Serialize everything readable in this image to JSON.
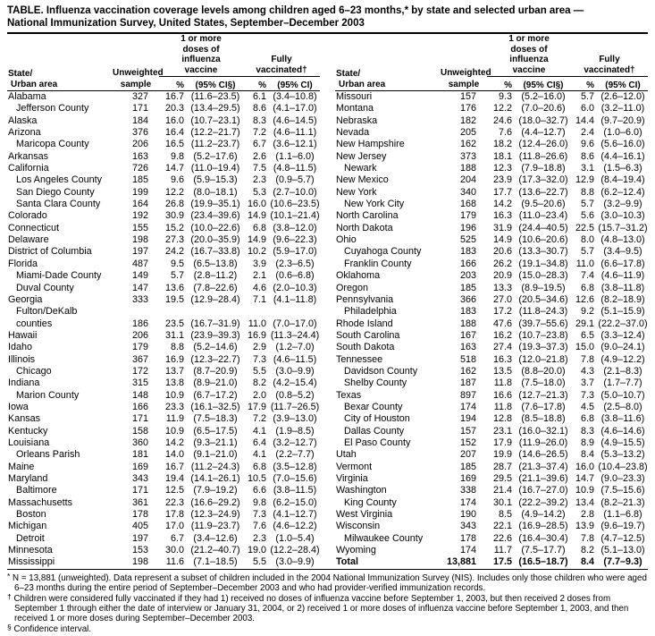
{
  "title": {
    "line1": "TABLE. Influenza vaccination coverage levels among children aged 6–23 months,* by state and selected urban area —",
    "line2": "National Immunization Survey, United States, September–December 2003"
  },
  "header": {
    "state_line1": "State/",
    "state_line2": "Urban area",
    "sample_line1": "Unweighted",
    "sample_line2": "sample",
    "group_dose1": "1 or more\ndoses of\ninfluenza\nvaccine",
    "group_fully": "Fully\nvaccinated†",
    "pct": "%",
    "ci_dose1": "(95% CI§)",
    "ci_fully": "(95% CI)"
  },
  "row_fields": [
    "name",
    "indent",
    "unweighted_sample",
    "dose1_pct",
    "dose1_ci",
    "fully_pct",
    "fully_ci",
    "bold"
  ],
  "left_rows": [
    [
      "Alabama",
      0,
      "327",
      "16.7",
      "(11.6–23.5)",
      "6.1",
      "(3.4–10.8)"
    ],
    [
      "Jefferson County",
      1,
      "171",
      "20.3",
      "(13.4–29.5)",
      "8.6",
      "(4.1–17.0)"
    ],
    [
      "Alaska",
      0,
      "184",
      "16.0",
      "(10.7–23.1)",
      "8.3",
      "(4.6–14.5)"
    ],
    [
      "Arizona",
      0,
      "376",
      "16.4",
      "(12.2–21.7)",
      "7.2",
      "(4.6–11.1)"
    ],
    [
      "Maricopa County",
      1,
      "206",
      "16.5",
      "(11.2–23.7)",
      "6.7",
      "(3.6–12.1)"
    ],
    [
      "Arkansas",
      0,
      "163",
      "9.8",
      "(5.2–17.6)",
      "2.6",
      "(1.1–6.0)"
    ],
    [
      "California",
      0,
      "726",
      "14.7",
      "(11.0–19.4)",
      "7.5",
      "(4.8–11.5)"
    ],
    [
      "Los Angeles County",
      1,
      "185",
      "9.6",
      "(5.9–15.3)",
      "2.3",
      "(0.9–5.7)"
    ],
    [
      "San Diego County",
      1,
      "199",
      "12.2",
      "(8.0–18.1)",
      "5.3",
      "(2.7–10.0)"
    ],
    [
      "Santa Clara County",
      1,
      "164",
      "26.8",
      "(19.9–35.1)",
      "16.0",
      "(10.6–23.5)"
    ],
    [
      "Colorado",
      0,
      "192",
      "30.9",
      "(23.4–39.6)",
      "14.9",
      "(10.1–21.4)"
    ],
    [
      "Connecticut",
      0,
      "155",
      "15.2",
      "(10.0–22.6)",
      "6.8",
      "(3.8–12.0)"
    ],
    [
      "Delaware",
      0,
      "198",
      "27.3",
      "(20.0–35.9)",
      "14.9",
      "(9.6–22.3)"
    ],
    [
      "District of Columbia",
      0,
      "197",
      "24.2",
      "(16.7–33.8)",
      "10.2",
      "(5.9–17.0)"
    ],
    [
      "Florida",
      0,
      "487",
      "9.5",
      "(6.5–13.8)",
      "3.9",
      "(2.3–6.5)"
    ],
    [
      "Miami-Dade County",
      1,
      "149",
      "5.7",
      "(2.8–11.2)",
      "2.1",
      "(0.6–6.8)"
    ],
    [
      "Duval County",
      1,
      "147",
      "13.6",
      "(7.8–22.6)",
      "4.6",
      "(2.0–10.3)"
    ],
    [
      "Georgia",
      0,
      "333",
      "19.5",
      "(12.9–28.4)",
      "7.1",
      "(4.1–11.8)"
    ],
    [
      "Fulton/DeKalb",
      1,
      "",
      "",
      "",
      "",
      ""
    ],
    [
      "counties",
      1,
      "186",
      "23.5",
      "(16.7–31.9)",
      "11.0",
      "(7.0–17.0)"
    ],
    [
      "Hawaii",
      0,
      "206",
      "31.1",
      "(23.9–39.3)",
      "16.9",
      "(11.3–24.4)"
    ],
    [
      "Idaho",
      0,
      "179",
      "8.8",
      "(5.2–14.6)",
      "2.9",
      "(1.2–7.0)"
    ],
    [
      "Illinois",
      0,
      "367",
      "16.9",
      "(12.3–22.7)",
      "7.3",
      "(4.6–11.5)"
    ],
    [
      "Chicago",
      1,
      "172",
      "13.7",
      "(8.7–20.9)",
      "5.5",
      "(3.0–9.9)"
    ],
    [
      "Indiana",
      0,
      "315",
      "13.8",
      "(8.9–21.0)",
      "8.2",
      "(4.2–15.4)"
    ],
    [
      "Marion County",
      1,
      "148",
      "10.9",
      "(6.7–17.2)",
      "2.0",
      "(0.8–5.2)"
    ],
    [
      "Iowa",
      0,
      "166",
      "23.3",
      "(16.1–32.5)",
      "17.9",
      "(11.7–26.5)"
    ],
    [
      "Kansas",
      0,
      "171",
      "11.9",
      "(7.5–18.3)",
      "7.2",
      "(3.9–13.0)"
    ],
    [
      "Kentucky",
      0,
      "158",
      "10.9",
      "(6.5–17.5)",
      "4.1",
      "(1.9–8.5)"
    ],
    [
      "Louisiana",
      0,
      "360",
      "14.2",
      "(9.3–21.1)",
      "6.4",
      "(3.2–12.7)"
    ],
    [
      "Orleans Parish",
      1,
      "181",
      "14.0",
      "(9.1–21.0)",
      "4.1",
      "(2.2–7.7)"
    ],
    [
      "Maine",
      0,
      "169",
      "16.7",
      "(11.2–24.3)",
      "6.8",
      "(3.5–12.8)"
    ],
    [
      "Maryland",
      0,
      "343",
      "19.4",
      "(14.1–26.1)",
      "10.5",
      "(7.0–15.6)"
    ],
    [
      "Baltimore",
      1,
      "171",
      "12.5",
      "(7.9–19.2)",
      "6.6",
      "(3.8–11.5)"
    ],
    [
      "Massachusetts",
      0,
      "361",
      "22.3",
      "(16.6–29.2)",
      "9.8",
      "(6.2–15.0)"
    ],
    [
      "Boston",
      1,
      "178",
      "17.8",
      "(12.3–24.9)",
      "7.3",
      "(4.1–12.7)"
    ],
    [
      "Michigan",
      0,
      "405",
      "17.0",
      "(11.9–23.7)",
      "7.6",
      "(4.6–12.2)"
    ],
    [
      "Detroit",
      1,
      "197",
      "6.7",
      "(3.4–12.6)",
      "2.3",
      "(1.0–5.4)"
    ],
    [
      "Minnesota",
      0,
      "153",
      "30.0",
      "(21.2–40.7)",
      "19.0",
      "(12.2–28.4)"
    ],
    [
      "Mississippi",
      0,
      "198",
      "11.6",
      "(7.1–18.5)",
      "5.5",
      "(3.0–9.9)"
    ]
  ],
  "right_rows": [
    [
      "Missouri",
      0,
      "157",
      "9.3",
      "(5.2–16.0)",
      "5.7",
      "(2.6–12.0)"
    ],
    [
      "Montana",
      0,
      "176",
      "12.2",
      "(7.0–20.6)",
      "6.0",
      "(3.2–11.0)"
    ],
    [
      "Nebraska",
      0,
      "182",
      "24.6",
      "(18.0–32.7)",
      "14.4",
      "(9.7–20.9)"
    ],
    [
      "Nevada",
      0,
      "205",
      "7.6",
      "(4.4–12.7)",
      "2.4",
      "(1.0–6.0)"
    ],
    [
      "New Hampshire",
      0,
      "162",
      "18.2",
      "(12.4–26.0)",
      "9.6",
      "(5.6–16.0)"
    ],
    [
      "New Jersey",
      0,
      "373",
      "18.1",
      "(11.8–26.6)",
      "8.6",
      "(4.4–16.1)"
    ],
    [
      "Newark",
      1,
      "188",
      "12.3",
      "(7.9–18.8)",
      "3.1",
      "(1.5–6.3)"
    ],
    [
      "New Mexico",
      0,
      "204",
      "23.9",
      "(17.3–32.0)",
      "12.9",
      "(8.4–19.4)"
    ],
    [
      "New York",
      0,
      "340",
      "17.7",
      "(13.6–22.7)",
      "8.8",
      "(6.2–12.4)"
    ],
    [
      "New York City",
      1,
      "168",
      "14.2",
      "(9.5–20.6)",
      "5.7",
      "(3.2–9.9)"
    ],
    [
      "North Carolina",
      0,
      "179",
      "16.3",
      "(11.0–23.4)",
      "5.6",
      "(3.0–10.3)"
    ],
    [
      "North Dakota",
      0,
      "196",
      "31.9",
      "(24.4–40.5)",
      "22.5",
      "(15.7–31.2)"
    ],
    [
      "Ohio",
      0,
      "525",
      "14.9",
      "(10.6–20.6)",
      "8.0",
      "(4.8–13.0)"
    ],
    [
      "Cuyahoga County",
      1,
      "183",
      "20.6",
      "(13.3–30.7)",
      "5.7",
      "(3.4–9.5)"
    ],
    [
      "Franklin County",
      1,
      "166",
      "26.2",
      "(19.1–34.8)",
      "11.0",
      "(6.6–17.8)"
    ],
    [
      "Oklahoma",
      0,
      "203",
      "20.9",
      "(15.0–28.3)",
      "7.4",
      "(4.6–11.9)"
    ],
    [
      "Oregon",
      0,
      "185",
      "13.3",
      "(8.9–19.5)",
      "6.8",
      "(3.8–11.8)"
    ],
    [
      "Pennsylvania",
      0,
      "366",
      "27.0",
      "(20.5–34.6)",
      "12.6",
      "(8.2–18.9)"
    ],
    [
      "Philadelphia",
      1,
      "183",
      "17.2",
      "(11.8–24.3)",
      "9.2",
      "(5.1–15.9)"
    ],
    [
      "Rhode Island",
      0,
      "188",
      "47.6",
      "(39.7–55.6)",
      "29.1",
      "(22.2–37.0)"
    ],
    [
      "South Carolina",
      0,
      "167",
      "16.2",
      "(10.7–23.8)",
      "6.5",
      "(3.3–12.4)"
    ],
    [
      "South Dakota",
      0,
      "163",
      "27.4",
      "(19.3–37.3)",
      "15.0",
      "(9.0–24.1)"
    ],
    [
      "Tennessee",
      0,
      "518",
      "16.3",
      "(12.0–21.8)",
      "7.8",
      "(4.9–12.2)"
    ],
    [
      "Davidson County",
      1,
      "162",
      "13.5",
      "(8.8–20.0)",
      "4.3",
      "(2.1–8.3)"
    ],
    [
      "Shelby County",
      1,
      "187",
      "11.8",
      "(7.5–18.0)",
      "3.7",
      "(1.7–7.7)"
    ],
    [
      "Texas",
      0,
      "897",
      "16.6",
      "(12.7–21.3)",
      "7.3",
      "(5.0–10.7)"
    ],
    [
      "Bexar County",
      1,
      "174",
      "11.8",
      "(7.6–17.8)",
      "4.5",
      "(2.5–8.0)"
    ],
    [
      "City of Houston",
      1,
      "194",
      "12.8",
      "(8.5–18.8)",
      "6.8",
      "(3.8–11.6)"
    ],
    [
      "Dallas County",
      1,
      "157",
      "23.1",
      "(16.0–32.1)",
      "8.3",
      "(4.6–14.6)"
    ],
    [
      "El Paso County",
      1,
      "152",
      "17.9",
      "(11.9–26.0)",
      "8.9",
      "(4.9–15.5)"
    ],
    [
      "Utah",
      0,
      "207",
      "19.9",
      "(14.6–26.5)",
      "8.4",
      "(5.3–13.2)"
    ],
    [
      "Vermont",
      0,
      "185",
      "28.7",
      "(21.3–37.4)",
      "16.0",
      "(10.4–23.8)"
    ],
    [
      "Virginia",
      0,
      "169",
      "29.5",
      "(21.1–39.6)",
      "14.7",
      "(9.0–23.3)"
    ],
    [
      "Washington",
      0,
      "338",
      "21.4",
      "(16.7–27.0)",
      "10.9",
      "(7.5–15.6)"
    ],
    [
      "King County",
      1,
      "174",
      "30.1",
      "(22.2–39.2)",
      "13.4",
      "(8.2–21.3)"
    ],
    [
      "West Virginia",
      0,
      "190",
      "8.5",
      "(4.9–14.2)",
      "2.8",
      "(1.1–6.8)"
    ],
    [
      "Wisconsin",
      0,
      "343",
      "22.1",
      "(16.9–28.5)",
      "13.9",
      "(9.6–19.7)"
    ],
    [
      "Milwaukee County",
      1,
      "178",
      "22.6",
      "(16.4–30.4)",
      "7.8",
      "(4.7–12.5)"
    ],
    [
      "Wyoming",
      0,
      "174",
      "11.7",
      "(7.5–17.7)",
      "8.2",
      "(5.1–13.0)"
    ],
    [
      "Total",
      0,
      "13,881",
      "17.5",
      "(16.5–18.7)",
      "8.4",
      "(7.7–9.3)",
      true
    ]
  ],
  "footnotes": [
    {
      "marker": "*",
      "text": "N = 13,881 (unweighted). Data represent a subset of children included in the 2004 National Immunization Survey (NIS). Includes only those children who were aged 6–23 months during the entire period of September–December 2003 and who had provider-verified immunization records."
    },
    {
      "marker": "†",
      "text": "Children were considered fully vaccinated if they had 1) received no doses of influenza vaccine before September 1, 2003, but then received 2 doses from September 1 through either the date of interview or January 31, 2004, or 2) received 1 or more doses of influenza vaccine before September 1, 2003, and then received 1 or more doses during September–December 2003."
    },
    {
      "marker": "§",
      "text": "Confidence interval."
    }
  ]
}
